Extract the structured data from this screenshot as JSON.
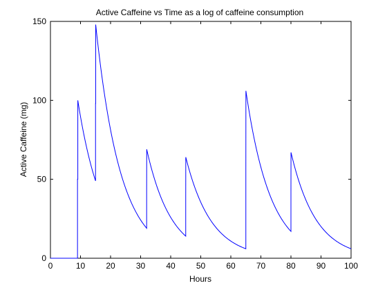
{
  "chart_data": {
    "type": "line",
    "title": "Active Caffeine vs Time as a log of caffeine consumption",
    "xlabel": "Hours",
    "ylabel": "Active Caffeine (mg)",
    "xlim": [
      0,
      100
    ],
    "ylim": [
      0,
      150
    ],
    "xticks": [
      "0",
      "10",
      "20",
      "30",
      "40",
      "50",
      "60",
      "70",
      "80",
      "90",
      "100"
    ],
    "yticks": [
      "0",
      "50",
      "100",
      "150"
    ],
    "grid": false,
    "line_color": "#0000ff",
    "series": [
      {
        "x": [
          0,
          9,
          9,
          9.1,
          9.1,
          15,
          15,
          15.05,
          15.05,
          32,
          32,
          32.02,
          45,
          45,
          45.02,
          65,
          65,
          65.02,
          80,
          80,
          80.02,
          100
        ],
        "y": [
          0,
          0,
          50,
          50,
          100,
          49,
          98,
          98,
          148,
          19,
          43,
          69,
          14,
          39,
          64,
          6,
          56,
          106,
          17,
          42,
          67,
          6
        ]
      }
    ]
  }
}
